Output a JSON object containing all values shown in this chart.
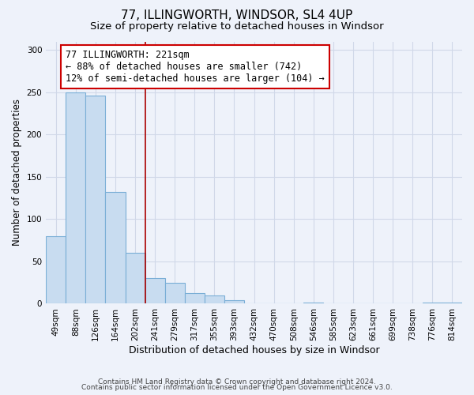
{
  "title": "77, ILLINGWORTH, WINDSOR, SL4 4UP",
  "subtitle": "Size of property relative to detached houses in Windsor",
  "xlabel": "Distribution of detached houses by size in Windsor",
  "ylabel": "Number of detached properties",
  "bar_labels": [
    "49sqm",
    "88sqm",
    "126sqm",
    "164sqm",
    "202sqm",
    "241sqm",
    "279sqm",
    "317sqm",
    "355sqm",
    "393sqm",
    "432sqm",
    "470sqm",
    "508sqm",
    "546sqm",
    "585sqm",
    "623sqm",
    "661sqm",
    "699sqm",
    "738sqm",
    "776sqm",
    "814sqm"
  ],
  "bar_values": [
    80,
    250,
    246,
    132,
    60,
    30,
    25,
    13,
    10,
    4,
    0,
    0,
    0,
    1,
    0,
    0,
    0,
    0,
    0,
    1,
    1
  ],
  "bar_color": "#c8dcf0",
  "bar_edgecolor": "#7aaed6",
  "vline_x": 4.5,
  "vline_color": "#aa0000",
  "annotation_text": "77 ILLINGWORTH: 221sqm\n← 88% of detached houses are smaller (742)\n12% of semi-detached houses are larger (104) →",
  "annotation_box_edgecolor": "#cc0000",
  "annotation_box_facecolor": "white",
  "ylim": [
    0,
    310
  ],
  "yticks": [
    0,
    50,
    100,
    150,
    200,
    250,
    300
  ],
  "grid_color": "#d0d8e8",
  "bg_color": "#eef2fa",
  "footer_line1": "Contains HM Land Registry data © Crown copyright and database right 2024.",
  "footer_line2": "Contains public sector information licensed under the Open Government Licence v3.0.",
  "title_fontsize": 11,
  "subtitle_fontsize": 9.5,
  "xlabel_fontsize": 9,
  "ylabel_fontsize": 8.5,
  "tick_fontsize": 7.5,
  "footer_fontsize": 6.5,
  "ann_fontsize": 8.5
}
